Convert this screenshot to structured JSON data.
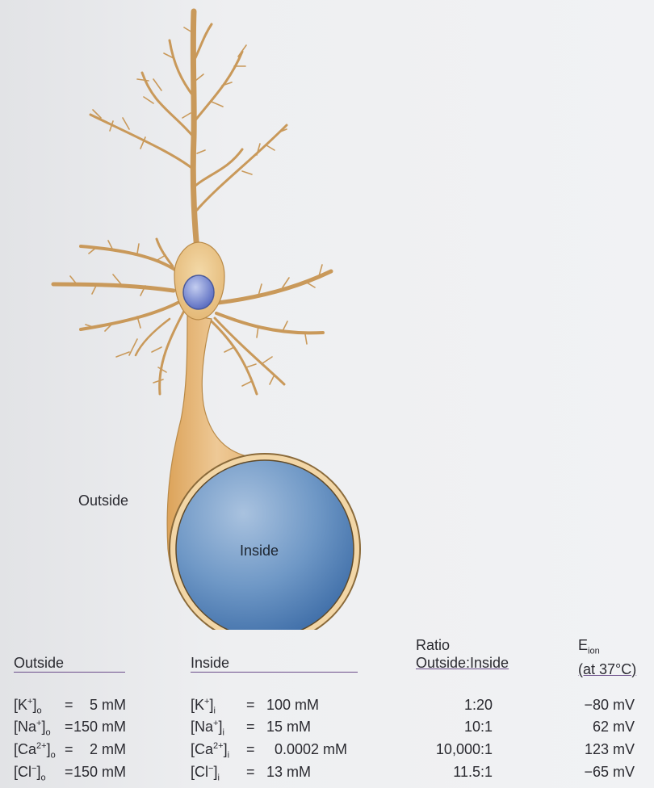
{
  "labels": {
    "outside_region": "Outside",
    "inside_region": "Inside"
  },
  "table": {
    "headers": {
      "outside": "Outside",
      "inside": "Inside",
      "ratio_line1": "Ratio",
      "ratio_line2": "Outside:Inside",
      "eion_symbol": "E",
      "eion_sub": "ion",
      "eion_line2": "(at 37°C)"
    },
    "rows": [
      {
        "ion": "K",
        "charge": "+",
        "out_conc": "5 mM",
        "in_conc": "100 mM",
        "ratio": "1:20",
        "eion": "−80 mV"
      },
      {
        "ion": "Na",
        "charge": "+",
        "out_conc": "150 mM",
        "in_conc": "15 mM",
        "ratio": "10:1",
        "eion": "62 mV"
      },
      {
        "ion": "Ca",
        "charge": "2+",
        "out_conc": "2 mM",
        "in_conc": "0.0002 mM",
        "ratio": "10,000:1",
        "eion": "123 mV"
      },
      {
        "ion": "Cl",
        "charge": "−",
        "out_conc": "150 mM",
        "in_conc": "13 mM",
        "ratio": "11.5:1",
        "eion": "−65 mV"
      }
    ],
    "subscript_out": "o",
    "subscript_in": "i",
    "equals": "="
  },
  "colors": {
    "neuron_fill": "#ecc88f",
    "neuron_stroke": "#a87a3c",
    "nucleus": "#7d8ed6",
    "inside_fill": "#6f98c6",
    "rule_color": "#6b4c8a"
  }
}
